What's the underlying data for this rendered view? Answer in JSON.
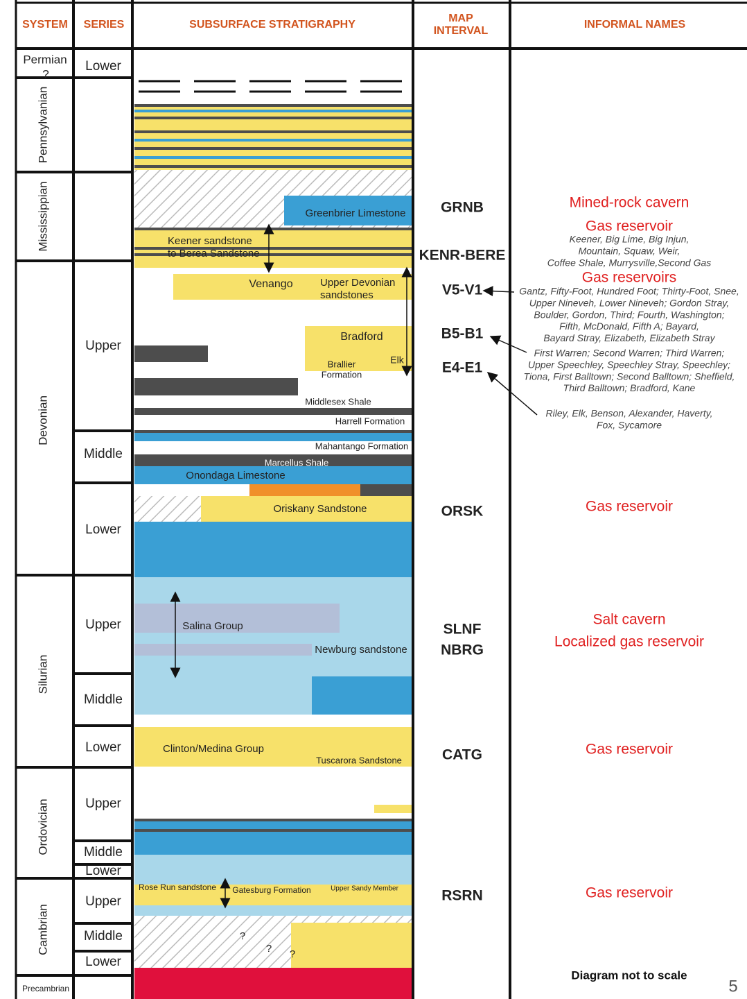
{
  "header": {
    "system": "SYSTEM",
    "series": "SERIES",
    "stratigraphy": "SUBSURFACE STRATIGRAPHY",
    "map_interval": [
      "MAP",
      "INTERVAL"
    ],
    "informal_names": "INFORMAL NAMES"
  },
  "systems": [
    "Permian",
    "?",
    "Pennsylvanian",
    "Mississippian",
    "Devonian",
    "Silurian",
    "Ordovician",
    "Cambrian",
    "Precambrian"
  ],
  "series": [
    "Lower",
    "Upper",
    "Middle",
    "Lower",
    "Upper",
    "Middle",
    "Lower",
    "Upper",
    "Middle",
    "Lower",
    "Upper",
    "Middle",
    "Lower"
  ],
  "formations": [
    [
      "Greenbrier Limestone"
    ],
    [
      "Keener sandstone",
      "to Berea Sandstone"
    ],
    [
      "Venango"
    ],
    [
      "Upper Devonian",
      "sandstones"
    ],
    [
      "Bradford"
    ],
    [
      "Brallier",
      "Formation"
    ],
    [
      "Elk"
    ],
    [
      "Middlesex Shale"
    ],
    [
      "Harrell Formation"
    ],
    [
      "Mahantango Formation"
    ],
    [
      "Marcellus Shale"
    ],
    [
      "Onondaga Limestone"
    ],
    [
      "Oriskany Sandstone"
    ],
    [
      "Salina Group"
    ],
    [
      "Newburg sandstone"
    ],
    [
      "Clinton/Medina Group"
    ],
    [
      "Tuscarora Sandstone"
    ],
    [
      "Rose Run sandstone"
    ],
    [
      "Gatesburg Formation"
    ],
    [
      "Upper Sandy Member"
    ],
    [
      "?"
    ],
    [
      "?"
    ],
    [
      "?"
    ]
  ],
  "map_intervals": [
    "GRNB",
    "KENR-BERE",
    "V5-V1",
    "B5-B1",
    "E4-E1",
    "ORSK",
    "SLNF",
    "NBRG",
    "CATG",
    "RSRN"
  ],
  "informal_names": [
    {
      "title": "Mined-rock cavern"
    },
    {
      "title": "Gas reservoir",
      "details": [
        [
          "Keener, Big Lime, Big Injun,",
          "Mountain, Squaw, Weir,",
          "Coffee Shale, Murrysville,Second Gas"
        ]
      ]
    },
    {
      "title": "Gas reservoirs",
      "details": [
        [
          "Gantz, Fifty-Foot, Hundred Foot; Thirty-Foot, Snee,",
          "Upper Nineveh, Lower Nineveh; Gordon Stray,",
          "Boulder, Gordon, Third; Fourth, Washington;",
          "Fifth, McDonald, Fifth A; Bayard,",
          "Bayard Stray, Elizabeth, Elizabeth Stray"
        ],
        [
          "First Warren; Second Warren; Third Warren;",
          "Upper Speechley, Speechley Stray, Speechley;",
          "Tiona, First Balltown; Second Balltown; Sheffield,",
          "Third Balltown; Bradford, Kane"
        ],
        [
          "Riley, Elk, Benson, Alexander, Haverty,",
          "Fox, Sycamore"
        ]
      ]
    },
    {
      "title": "Gas reservoir"
    },
    {
      "title": "Salt cavern"
    },
    {
      "title": "Localized gas reservoir"
    },
    {
      "title": "Gas reservoir"
    },
    {
      "title": "Gas reservoir"
    }
  ],
  "note": "Diagram not to scale",
  "page_number": "5"
}
